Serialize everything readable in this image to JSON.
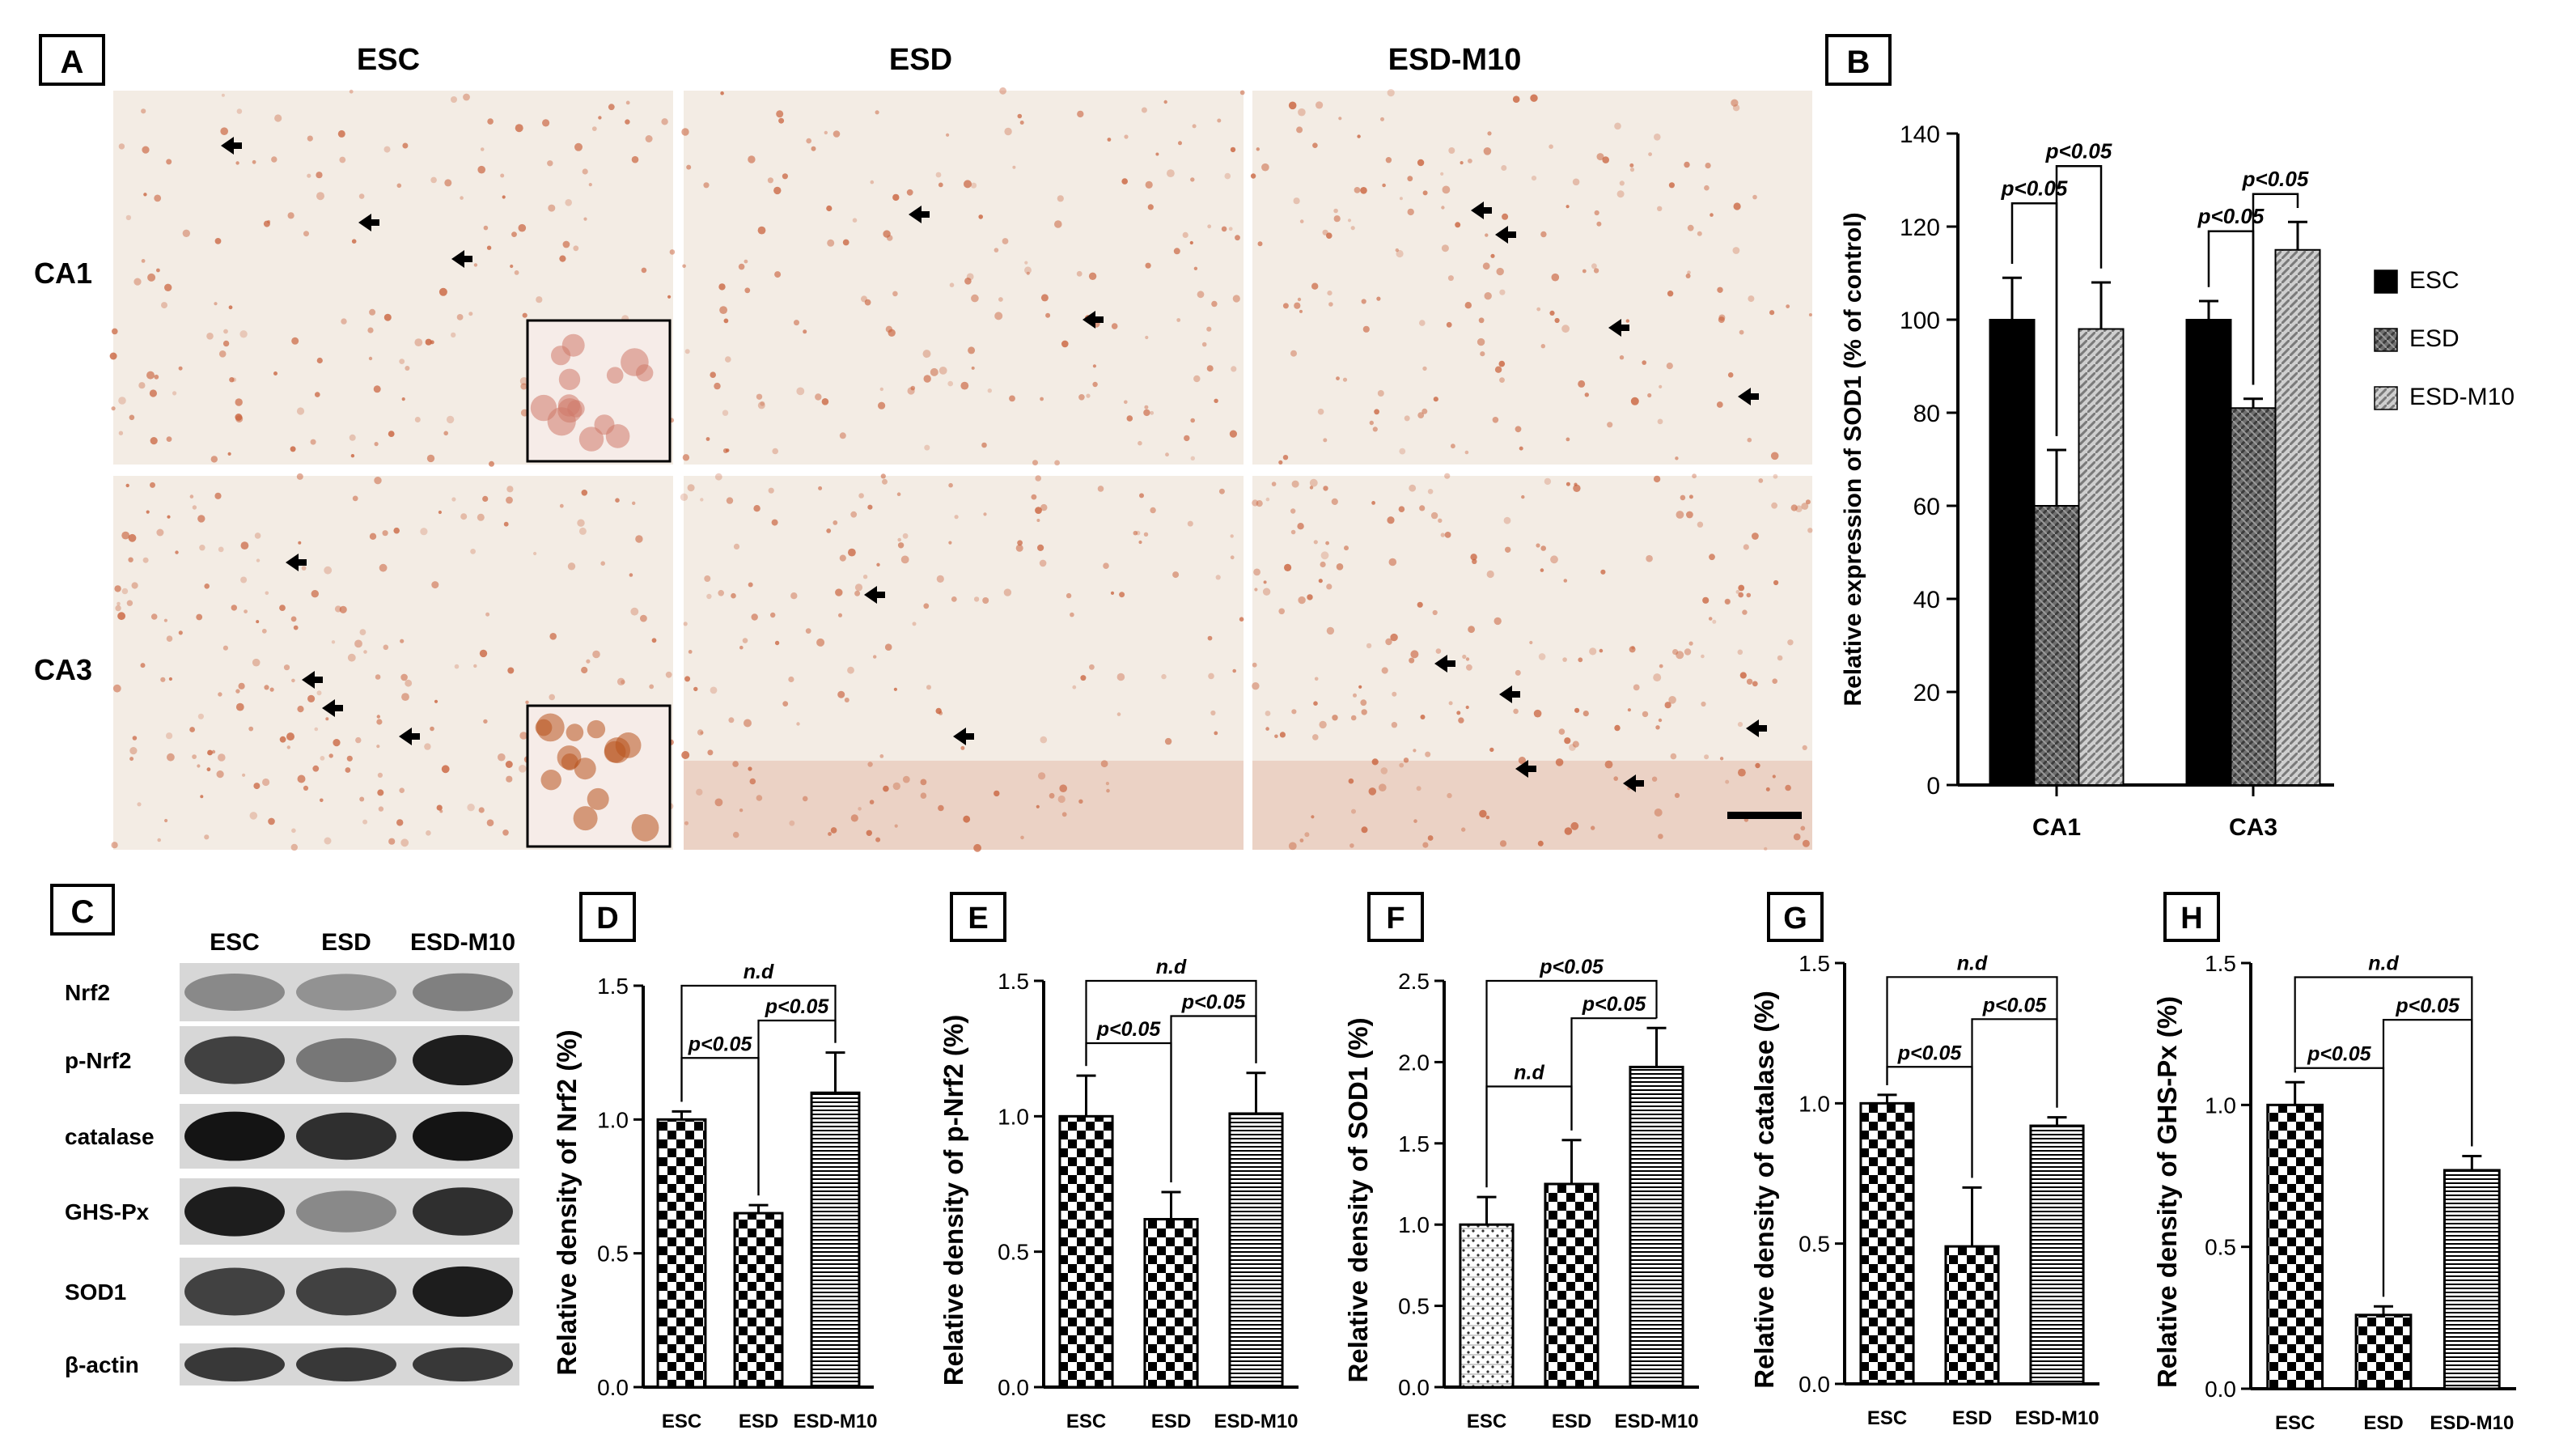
{
  "panel_letters": [
    "A",
    "B",
    "C",
    "D",
    "E",
    "F",
    "G",
    "H"
  ],
  "panel_a": {
    "columns": [
      "ESC",
      "ESD",
      "ESD-M10"
    ],
    "rows": [
      "CA1",
      "CA3"
    ]
  },
  "panel_c": {
    "lanes": [
      "ESC",
      "ESD",
      "ESD-M10"
    ],
    "proteins": [
      "Nrf2",
      "p-Nrf2",
      "catalase",
      "GHS-Px",
      "SOD1",
      "β-actin"
    ],
    "band_intensity": [
      [
        0.35,
        0.3,
        0.4
      ],
      [
        0.75,
        0.45,
        0.95
      ],
      [
        1.0,
        0.85,
        1.0
      ],
      [
        0.95,
        0.35,
        0.85
      ],
      [
        0.75,
        0.75,
        0.95
      ],
      [
        0.8,
        0.8,
        0.8
      ]
    ]
  },
  "colors": {
    "esc": "#000000",
    "esd": "#777777",
    "esdm10": "#bdbdbd",
    "tissue": "#f3ece4",
    "stain": "#c8603a"
  },
  "chart_data": [
    {
      "id": "B",
      "type": "bar",
      "title": "",
      "ylabel": "Relative expression of SOD1 (% of control)",
      "xlabel": "",
      "categories": [
        "CA1",
        "CA3"
      ],
      "ylim": [
        0,
        140
      ],
      "yticks": [
        "0",
        "20",
        "40",
        "60",
        "80",
        "100",
        "120",
        "140"
      ],
      "series": [
        {
          "name": "ESC",
          "values": [
            100,
            100
          ],
          "errors": [
            9,
            4
          ],
          "fill": "solid"
        },
        {
          "name": "ESD",
          "values": [
            60,
            81
          ],
          "errors": [
            12,
            2
          ],
          "fill": "hatch"
        },
        {
          "name": "ESD-M10",
          "values": [
            98,
            115
          ],
          "errors": [
            10,
            6
          ],
          "fill": "stripe"
        }
      ],
      "legend": "right",
      "annotations": [
        {
          "text": "p<0.05",
          "group": 0,
          "from": 0,
          "to": 1,
          "level": 125
        },
        {
          "text": "p<0.05",
          "group": 0,
          "from": 1,
          "to": 2,
          "level": 133
        },
        {
          "text": "p<0.05",
          "group": 1,
          "from": 0,
          "to": 1,
          "level": 119
        },
        {
          "text": "p<0.05",
          "group": 1,
          "from": 1,
          "to": 2,
          "level": 127
        }
      ]
    },
    {
      "id": "D",
      "type": "bar",
      "ylabel": "Relative density of Nrf2 (%)",
      "categories": [
        "ESC",
        "ESD",
        "ESD-M10"
      ],
      "values": [
        1.0,
        0.65,
        1.1
      ],
      "errors": [
        0.03,
        0.03,
        0.15
      ],
      "ylim": [
        0,
        1.5
      ],
      "yticks": [
        "0.0",
        "0.5",
        "1.0",
        "1.5"
      ],
      "patterns": [
        "check",
        "check",
        "hstripe"
      ],
      "annotations": [
        {
          "text": "p<0.05",
          "from": 0,
          "to": 1,
          "level": 1.23
        },
        {
          "text": "p<0.05",
          "from": 1,
          "to": 2,
          "level": 1.37
        },
        {
          "text": "n.d",
          "from": 0,
          "to": 2,
          "level": 1.5
        }
      ]
    },
    {
      "id": "E",
      "type": "bar",
      "ylabel": "Relative density of p-Nrf2 (%)",
      "categories": [
        "ESC",
        "ESD",
        "ESD-M10"
      ],
      "values": [
        1.0,
        0.62,
        1.01
      ],
      "errors": [
        0.15,
        0.1,
        0.15
      ],
      "ylim": [
        0,
        1.5
      ],
      "yticks": [
        "0.0",
        "0.5",
        "1.0",
        "1.5"
      ],
      "patterns": [
        "check",
        "check",
        "hstripe"
      ],
      "annotations": [
        {
          "text": "p<0.05",
          "from": 0,
          "to": 1,
          "level": 1.27
        },
        {
          "text": "p<0.05",
          "from": 1,
          "to": 2,
          "level": 1.37
        },
        {
          "text": "n.d",
          "from": 0,
          "to": 2,
          "level": 1.5
        }
      ]
    },
    {
      "id": "F",
      "type": "bar",
      "ylabel": "Relative density of SOD1 (%)",
      "categories": [
        "ESC",
        "ESD",
        "ESD-M10"
      ],
      "values": [
        1.0,
        1.25,
        1.97
      ],
      "errors": [
        0.17,
        0.27,
        0.24
      ],
      "ylim": [
        0,
        2.5
      ],
      "yticks": [
        "0.0",
        "0.5",
        "1.0",
        "1.5",
        "2.0",
        "2.5"
      ],
      "patterns": [
        "dots",
        "check",
        "hstripe"
      ],
      "annotations": [
        {
          "text": "n.d",
          "from": 0,
          "to": 1,
          "level": 1.85
        },
        {
          "text": "p<0.05",
          "from": 1,
          "to": 2,
          "level": 2.27
        },
        {
          "text": "p<0.05",
          "from": 0,
          "to": 2,
          "level": 2.5
        }
      ]
    },
    {
      "id": "G",
      "type": "bar",
      "ylabel": "Relative density of catalase (%)",
      "categories": [
        "ESC",
        "ESD",
        "ESD-M10"
      ],
      "values": [
        1.0,
        0.49,
        0.92
      ],
      "errors": [
        0.03,
        0.21,
        0.03
      ],
      "ylim": [
        0,
        1.5
      ],
      "yticks": [
        "0.0",
        "0.5",
        "1.0",
        "1.5"
      ],
      "patterns": [
        "check",
        "check",
        "hstripe"
      ],
      "annotations": [
        {
          "text": "p<0.05",
          "from": 0,
          "to": 1,
          "level": 1.13
        },
        {
          "text": "p<0.05",
          "from": 1,
          "to": 2,
          "level": 1.3
        },
        {
          "text": "n.d",
          "from": 0,
          "to": 2,
          "level": 1.45
        }
      ]
    },
    {
      "id": "H",
      "type": "bar",
      "ylabel": "Relative density of GHS-Px (%)",
      "categories": [
        "ESC",
        "ESD",
        "ESD-M10"
      ],
      "values": [
        1.0,
        0.26,
        0.77
      ],
      "errors": [
        0.08,
        0.03,
        0.05
      ],
      "ylim": [
        0,
        1.5
      ],
      "yticks": [
        "0.0",
        "0.5",
        "1.0",
        "1.5"
      ],
      "patterns": [
        "check",
        "check",
        "hstripe"
      ],
      "annotations": [
        {
          "text": "p<0.05",
          "from": 0,
          "to": 1,
          "level": 1.13
        },
        {
          "text": "p<0.05",
          "from": 1,
          "to": 2,
          "level": 1.3
        },
        {
          "text": "n.d",
          "from": 0,
          "to": 2,
          "level": 1.45
        }
      ]
    }
  ]
}
